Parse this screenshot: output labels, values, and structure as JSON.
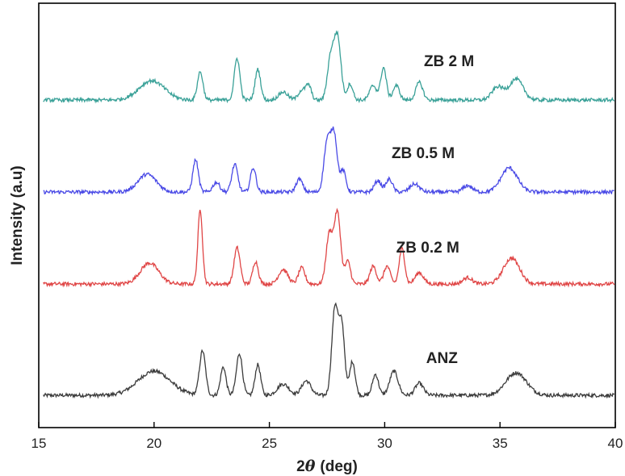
{
  "chart_data": {
    "type": "line",
    "title": "",
    "xlabel_prefix": "2",
    "xlabel_symbol": "θ",
    "xlabel_unit": "(deg)",
    "ylabel": "Intensity (a.u)",
    "xlim": [
      15,
      40
    ],
    "x_ticks": [
      "15",
      "20",
      "25",
      "30",
      "35",
      "40"
    ],
    "y_ticks_shown": false,
    "grid": false,
    "legend": "none",
    "series": [
      {
        "name": "ANZ",
        "color": "#3c3c3c",
        "baseline": 490,
        "label_pos": [
          31.8,
          450
        ],
        "peaks": [
          [
            20.0,
            30,
            0.7
          ],
          [
            22.1,
            55,
            0.13
          ],
          [
            23.0,
            35,
            0.12
          ],
          [
            23.7,
            52,
            0.13
          ],
          [
            24.5,
            38,
            0.12
          ],
          [
            25.6,
            14,
            0.25
          ],
          [
            26.6,
            18,
            0.2
          ],
          [
            27.85,
            110,
            0.14
          ],
          [
            28.15,
            82,
            0.12
          ],
          [
            28.6,
            42,
            0.12
          ],
          [
            29.6,
            26,
            0.13
          ],
          [
            30.4,
            30,
            0.18
          ],
          [
            31.5,
            15,
            0.18
          ],
          [
            35.7,
            28,
            0.45
          ]
        ]
      },
      {
        "name": "ZB 0.2 M",
        "color": "#e04646",
        "baseline": 352,
        "label_pos": [
          30.5,
          313
        ],
        "peaks": [
          [
            19.8,
            26,
            0.4
          ],
          [
            22.0,
            92,
            0.1
          ],
          [
            23.6,
            45,
            0.13
          ],
          [
            24.4,
            28,
            0.12
          ],
          [
            25.6,
            18,
            0.2
          ],
          [
            26.4,
            20,
            0.14
          ],
          [
            27.6,
            62,
            0.14
          ],
          [
            27.95,
            88,
            0.14
          ],
          [
            28.4,
            28,
            0.12
          ],
          [
            29.5,
            22,
            0.14
          ],
          [
            30.1,
            22,
            0.14
          ],
          [
            30.75,
            44,
            0.12
          ],
          [
            31.5,
            14,
            0.18
          ],
          [
            33.6,
            8,
            0.2
          ],
          [
            35.5,
            32,
            0.35
          ]
        ]
      },
      {
        "name": "ZB 0.5 M",
        "color": "#4a4ae6",
        "baseline": 238,
        "label_pos": [
          30.3,
          196
        ],
        "peaks": [
          [
            19.7,
            22,
            0.4
          ],
          [
            21.8,
            40,
            0.12
          ],
          [
            22.7,
            12,
            0.15
          ],
          [
            23.5,
            34,
            0.13
          ],
          [
            24.3,
            30,
            0.12
          ],
          [
            26.3,
            16,
            0.14
          ],
          [
            27.5,
            60,
            0.14
          ],
          [
            27.8,
            72,
            0.14
          ],
          [
            28.2,
            26,
            0.12
          ],
          [
            29.7,
            14,
            0.15
          ],
          [
            30.2,
            16,
            0.14
          ],
          [
            31.3,
            10,
            0.2
          ],
          [
            33.6,
            8,
            0.2
          ],
          [
            35.4,
            30,
            0.35
          ]
        ]
      },
      {
        "name": "ZB 2 M",
        "color": "#3aa198",
        "baseline": 124,
        "label_pos": [
          31.7,
          82
        ],
        "peaks": [
          [
            19.9,
            24,
            0.55
          ],
          [
            22.0,
            35,
            0.12
          ],
          [
            23.6,
            52,
            0.12
          ],
          [
            24.5,
            38,
            0.12
          ],
          [
            25.6,
            10,
            0.2
          ],
          [
            26.4,
            12,
            0.15
          ],
          [
            26.7,
            18,
            0.12
          ],
          [
            27.65,
            50,
            0.14
          ],
          [
            27.95,
            78,
            0.15
          ],
          [
            28.5,
            20,
            0.12
          ],
          [
            29.5,
            18,
            0.15
          ],
          [
            29.95,
            40,
            0.12
          ],
          [
            30.5,
            18,
            0.14
          ],
          [
            31.5,
            22,
            0.15
          ],
          [
            34.9,
            16,
            0.25
          ],
          [
            35.7,
            26,
            0.3
          ]
        ]
      }
    ]
  }
}
